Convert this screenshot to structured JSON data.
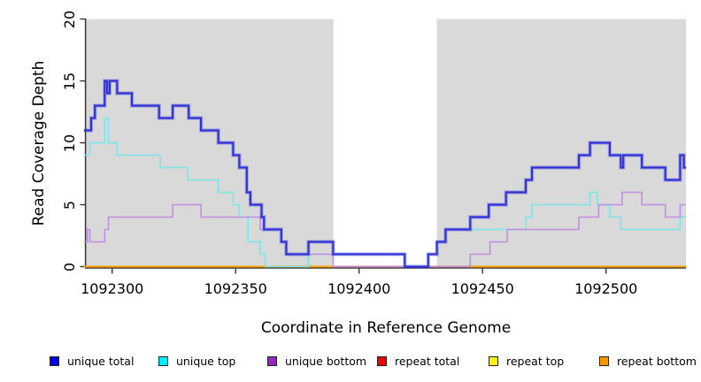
{
  "chart_data": {
    "type": "line",
    "subtype": "step",
    "title": "",
    "xlabel": "Coordinate in Reference Genome",
    "ylabel": "Read Coverage Depth",
    "xlim": [
      1092288.6,
      1092532.4
    ],
    "ylim": [
      0,
      20
    ],
    "x_ticks": [
      1092300,
      1092350,
      1092400,
      1092450,
      1092500
    ],
    "y_ticks": [
      0,
      5,
      10,
      15,
      20
    ],
    "grid": false,
    "legend_position": "bottom",
    "panel_background": "#ffffff",
    "shaded_regions": {
      "color": "#d9d9d9",
      "x_ranges": [
        [
          1092288.6,
          1092389.6
        ],
        [
          1092431.5,
          1092532.4
        ]
      ]
    },
    "zero_line_overlay": {
      "comment": "pinkish blended 0-line visible where unique bottom = 0",
      "color": "#c4607e",
      "x_range": [
        1092389.6,
        1092444.7
      ],
      "y": 0
    },
    "series": [
      {
        "name": "unique total",
        "line_color": "#3032d8",
        "legend_color": "#0000f0",
        "line_width": 2.2,
        "points": [
          [
            1092288.6,
            11
          ],
          [
            1092291.5,
            12
          ],
          [
            1092293,
            13
          ],
          [
            1092297,
            15
          ],
          [
            1092298,
            14
          ],
          [
            1092299,
            15
          ],
          [
            1092302,
            14
          ],
          [
            1092308,
            13
          ],
          [
            1092319,
            12
          ],
          [
            1092324.5,
            13
          ],
          [
            1092331,
            12
          ],
          [
            1092336,
            11
          ],
          [
            1092343,
            10
          ],
          [
            1092349,
            9
          ],
          [
            1092351.5,
            8
          ],
          [
            1092354.5,
            6
          ],
          [
            1092356,
            5
          ],
          [
            1092360.5,
            4
          ],
          [
            1092361.5,
            3
          ],
          [
            1092368.5,
            2
          ],
          [
            1092370.5,
            1
          ],
          [
            1092379.5,
            2
          ],
          [
            1092389.5,
            1
          ],
          [
            1092418.5,
            0
          ],
          [
            1092428,
            1
          ],
          [
            1092431.5,
            2
          ],
          [
            1092435,
            3
          ],
          [
            1092445,
            4
          ],
          [
            1092452.5,
            5
          ],
          [
            1092459.5,
            6
          ],
          [
            1092467.5,
            7
          ],
          [
            1092470,
            8
          ],
          [
            1092489,
            9
          ],
          [
            1092493.5,
            10
          ],
          [
            1092501.5,
            9
          ],
          [
            1092506,
            8
          ],
          [
            1092507,
            9
          ],
          [
            1092514.5,
            8
          ],
          [
            1092524,
            7
          ],
          [
            1092530,
            9
          ],
          [
            1092531.5,
            8
          ],
          [
            1092532.4,
            8
          ]
        ]
      },
      {
        "name": "unique top",
        "line_color": "#79e6ea",
        "legend_color": "#00eeff",
        "line_width": 1.6,
        "points": [
          [
            1092288.6,
            9
          ],
          [
            1092291,
            10
          ],
          [
            1092297,
            12
          ],
          [
            1092298.5,
            10
          ],
          [
            1092302,
            9
          ],
          [
            1092319.5,
            8
          ],
          [
            1092330.5,
            7
          ],
          [
            1092343,
            6
          ],
          [
            1092349,
            5
          ],
          [
            1092351.5,
            4
          ],
          [
            1092355,
            2
          ],
          [
            1092360,
            1
          ],
          [
            1092362,
            0
          ],
          [
            1092379.5,
            1
          ],
          [
            1092418.5,
            0
          ],
          [
            1092428,
            1
          ],
          [
            1092431.5,
            2
          ],
          [
            1092435,
            3
          ],
          [
            1092467.5,
            4
          ],
          [
            1092470,
            5
          ],
          [
            1092493.5,
            6
          ],
          [
            1092496.5,
            5
          ],
          [
            1092501.5,
            4
          ],
          [
            1092506,
            3
          ],
          [
            1092530,
            4
          ],
          [
            1092532.4,
            4
          ]
        ]
      },
      {
        "name": "unique bottom",
        "line_color": "#c18fe2",
        "legend_color": "#9622c8",
        "line_width": 1.6,
        "points": [
          [
            1092288.6,
            2
          ],
          [
            1092290,
            3
          ],
          [
            1092291,
            2
          ],
          [
            1092297,
            3
          ],
          [
            1092298.5,
            4
          ],
          [
            1092324.5,
            5
          ],
          [
            1092336,
            4
          ],
          [
            1092360,
            3
          ],
          [
            1092368.5,
            2
          ],
          [
            1092370.5,
            1
          ],
          [
            1092389.5,
            0
          ],
          [
            1092445,
            1
          ],
          [
            1092453,
            2
          ],
          [
            1092460,
            3
          ],
          [
            1092489,
            4
          ],
          [
            1092497,
            5
          ],
          [
            1092506.5,
            6
          ],
          [
            1092514.5,
            5
          ],
          [
            1092524,
            4
          ],
          [
            1092530,
            5
          ],
          [
            1092532.4,
            5
          ]
        ]
      },
      {
        "name": "repeat total",
        "line_color": "#cc2222",
        "legend_color": "#f00000",
        "line_width": 1.4,
        "points": [
          [
            1092288.6,
            0
          ],
          [
            1092532.4,
            0
          ]
        ]
      },
      {
        "name": "repeat top",
        "line_color": "#ffee00",
        "legend_color": "#fff200",
        "line_width": 1.4,
        "points": [
          [
            1092288.6,
            0
          ],
          [
            1092532.4,
            0
          ]
        ]
      },
      {
        "name": "repeat bottom",
        "line_color": "#ffa200",
        "legend_color": "#ff9800",
        "line_width": 2,
        "points": [
          [
            1092288.6,
            0
          ],
          [
            1092532.4,
            0
          ]
        ]
      }
    ],
    "legend": [
      {
        "label": "unique total",
        "color": "#0000f0"
      },
      {
        "label": "unique top",
        "color": "#00eeff"
      },
      {
        "label": "unique bottom",
        "color": "#9622c8"
      },
      {
        "label": "repeat total",
        "color": "#f00000"
      },
      {
        "label": "repeat top",
        "color": "#fff200"
      },
      {
        "label": "repeat bottom",
        "color": "#ff9800"
      }
    ]
  }
}
